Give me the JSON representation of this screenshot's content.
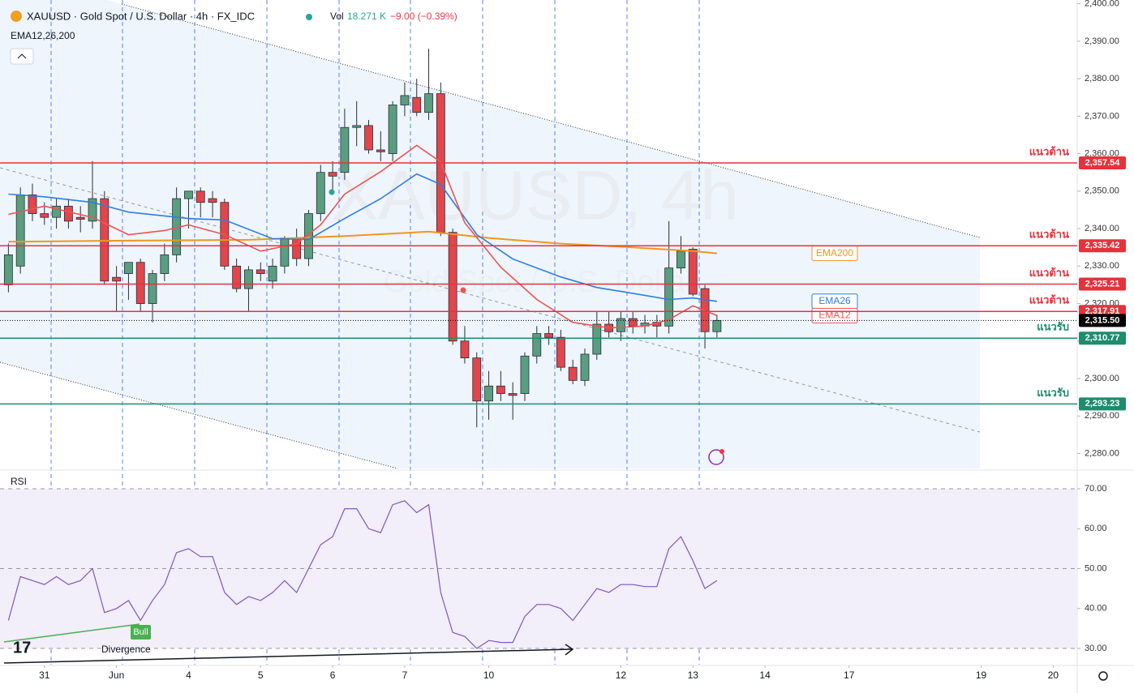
{
  "header": {
    "symbol_line": "XAUUSD · Gold Spot / U.S. Dollar · 4h · FX_IDC",
    "volume_label": "Vol",
    "volume": "18.271 K",
    "change": "−9.00 (−0.39%)",
    "indicators": "EMA12,26,200"
  },
  "watermark": {
    "symbol": "XAUUSD, 4h",
    "description": "Gold Spot / U.S. Dollar"
  },
  "chart_data": [
    {
      "type": "candlestick",
      "x": [
        0,
        1,
        2,
        3,
        4,
        5,
        6,
        7,
        8,
        9,
        10,
        11,
        12,
        13,
        14,
        15,
        16,
        17,
        18,
        19,
        20,
        21,
        22,
        23,
        24,
        25,
        26,
        27,
        28,
        29,
        30,
        31,
        32,
        33,
        34,
        35,
        36,
        37,
        38,
        39,
        40,
        41,
        42,
        43,
        44,
        45,
        46,
        47,
        48,
        49,
        50,
        51,
        52,
        53,
        54,
        55,
        56,
        57,
        58,
        59
      ],
      "open": [
        2325,
        2330,
        2349,
        2344,
        2343,
        2346,
        2343,
        2342,
        2348,
        2327,
        2328,
        2331,
        2320,
        2328,
        2333,
        2348,
        2350,
        2348,
        2347,
        2330,
        2324,
        2329,
        2326,
        2330,
        2337.5,
        2332,
        2344,
        2355,
        2355,
        2367,
        2367.5,
        2361,
        2360,
        2373,
        2375,
        2371,
        2376,
        2339,
        2310,
        2305.5,
        2294,
        2298,
        2296,
        2296,
        2306,
        2312,
        2311,
        2303,
        2299.5,
        2306.5,
        2314.5,
        2312.5,
        2316,
        2314,
        2315,
        2314,
        2329.5,
        2334.5,
        2324,
        2312.5
      ],
      "high": [
        2336,
        2351,
        2352,
        2347,
        2348,
        2348,
        2346,
        2358,
        2350,
        2330,
        2331,
        2332,
        2329,
        2336,
        2351,
        2350,
        2351,
        2350,
        2348,
        2332,
        2330,
        2331,
        2332,
        2338,
        2340,
        2345,
        2357,
        2358,
        2372,
        2374,
        2369,
        2366,
        2374,
        2379,
        2380,
        2388,
        2379,
        2340,
        2314,
        2307,
        2302,
        2302,
        2299,
        2307,
        2314,
        2314,
        2313,
        2305,
        2308,
        2318,
        2318,
        2318,
        2318,
        2317,
        2317,
        2342,
        2338,
        2335,
        2325,
        2317
      ],
      "low": [
        2323,
        2328,
        2342,
        2341,
        2340,
        2340,
        2339,
        2340,
        2325,
        2318,
        2321,
        2318,
        2315,
        2326,
        2331,
        2340,
        2343,
        2343,
        2329,
        2323,
        2318,
        2326,
        2324,
        2328,
        2330,
        2330,
        2342,
        2349,
        2353,
        2362,
        2360,
        2358,
        2358,
        2370,
        2370,
        2369,
        2338,
        2309,
        2304,
        2287,
        2289,
        2294,
        2289,
        2294,
        2304,
        2309,
        2302,
        2298.5,
        2298,
        2305,
        2311,
        2310,
        2312,
        2312,
        2311,
        2312,
        2328,
        2322,
        2308,
        2311
      ],
      "close": [
        2333,
        2349,
        2344,
        2343,
        2346,
        2342,
        2342.5,
        2348,
        2326,
        2326,
        2331,
        2320,
        2328,
        2333,
        2348,
        2350,
        2347,
        2347,
        2330,
        2324,
        2329,
        2328,
        2330,
        2337.5,
        2332,
        2344,
        2355,
        2354,
        2367,
        2367.5,
        2361,
        2360.5,
        2373,
        2375.5,
        2371,
        2376,
        2339,
        2310,
        2305.5,
        2294,
        2298,
        2296,
        2295.5,
        2306,
        2312,
        2311,
        2303,
        2299.5,
        2306.5,
        2314.5,
        2312.5,
        2316,
        2314,
        2314.8,
        2314,
        2329.5,
        2334,
        2322.5,
        2312.5,
        2315.5
      ],
      "up_color": "#5a9e7f",
      "down_color": "#e0464c",
      "series": [
        {
          "name": "EMA200",
          "color": "#f0961e",
          "x": [
            0,
            10,
            20,
            28,
            35,
            40,
            46,
            52,
            57,
            59
          ],
          "values": [
            2336.5,
            2336.8,
            2337,
            2338,
            2339.2,
            2337.5,
            2336,
            2335,
            2334,
            2333.4
          ]
        },
        {
          "name": "EMA26",
          "color": "#2f7de1",
          "x": [
            0,
            3,
            7,
            10,
            15,
            18,
            22,
            25,
            28,
            31,
            34,
            36,
            39,
            42,
            46,
            49,
            53,
            55,
            57,
            59
          ],
          "values": [
            2349.2,
            2348.5,
            2347,
            2344.4,
            2342.7,
            2342.3,
            2337.3,
            2337.1,
            2342.7,
            2348,
            2354.6,
            2351.8,
            2338.4,
            2331.9,
            2327.1,
            2324.3,
            2322.2,
            2321.1,
            2321.5,
            2320.6
          ]
        },
        {
          "name": "EMA12",
          "color": "#ef5350",
          "x": [
            0,
            3,
            7,
            10,
            13,
            15,
            18,
            21,
            24,
            26,
            28,
            31,
            34,
            36,
            38,
            41,
            44,
            47,
            50,
            53,
            55,
            57,
            59
          ],
          "values": [
            2343.8,
            2346,
            2343,
            2338.4,
            2339.5,
            2341,
            2338.4,
            2334,
            2336,
            2341,
            2349.2,
            2355.2,
            2362.2,
            2357.8,
            2341.6,
            2329.7,
            2321.1,
            2315,
            2313.5,
            2314,
            2315.7,
            2319.4,
            2316.8
          ]
        }
      ],
      "levels": [
        {
          "value": 2357.54,
          "value_label": "2,357.54",
          "label": "แนวต้าน",
          "color": "#e5323b"
        },
        {
          "value": 2335.42,
          "value_label": "2,335.42",
          "label": "แนวต้าน",
          "color": "#e5323b"
        },
        {
          "value": 2325.21,
          "value_label": "2,325.21",
          "label": "แนวต้าน",
          "color": "#e5323b"
        },
        {
          "value": 2317.91,
          "value_label": "2,317.91",
          "label": "แนวต้าน",
          "color": "#e5323b"
        },
        {
          "value": 2315.5,
          "value_label": "2,315.50",
          "color": "#000000",
          "line_style": "dotted"
        },
        {
          "value": 2310.77,
          "value_label": "2,310.77",
          "label": "แนวรับ",
          "color": "#1e8c6e"
        },
        {
          "value": 2293.23,
          "value_label": "2,293.23",
          "label": "แนวรับ",
          "color": "#1e8c6e"
        }
      ],
      "xlim": [
        -0.7,
        89
      ],
      "ylim": [
        2276,
        2401
      ],
      "yticks": [
        {
          "value": 2280,
          "label": "2,280.00"
        },
        {
          "value": 2290,
          "label": "2,290.00"
        },
        {
          "value": 2300,
          "label": "2,300.00"
        },
        {
          "value": 2310,
          "label": "2,310.00"
        },
        {
          "value": 2320,
          "label": "2,320.00"
        },
        {
          "value": 2330,
          "label": "2,330.00"
        },
        {
          "value": 2340,
          "label": "2,340.00"
        },
        {
          "value": 2350,
          "label": "2,350.00"
        },
        {
          "value": 2360,
          "label": "2,360.00"
        },
        {
          "value": 2370,
          "label": "2,370.00"
        },
        {
          "value": 2380,
          "label": "2,380.00"
        },
        {
          "value": 2390,
          "label": "2,390.00"
        },
        {
          "value": 2400,
          "label": "2,400.00"
        }
      ]
    },
    {
      "type": "line",
      "title": "RSI",
      "color": "#7e57c2",
      "x": [
        0,
        1,
        2,
        3,
        4,
        5,
        6,
        7,
        8,
        9,
        10,
        11,
        12,
        13,
        14,
        15,
        16,
        17,
        18,
        19,
        20,
        21,
        22,
        23,
        24,
        25,
        26,
        27,
        28,
        29,
        30,
        31,
        32,
        33,
        34,
        35,
        36,
        37,
        38,
        39,
        40,
        41,
        42,
        43,
        44,
        45,
        46,
        47,
        48,
        49,
        50,
        51,
        52,
        53,
        54,
        55,
        56,
        57,
        58,
        59
      ],
      "values": [
        37,
        48,
        47,
        46,
        48,
        46,
        47,
        50,
        39,
        40,
        42,
        37,
        42,
        46,
        54,
        55,
        53,
        53,
        44,
        41,
        43,
        42,
        44,
        47,
        44,
        50,
        56,
        58,
        65,
        65,
        60,
        59,
        66,
        67,
        64,
        66,
        44,
        34,
        33,
        30,
        32,
        31.5,
        31.5,
        38,
        41,
        41,
        40,
        37,
        41,
        45,
        44,
        46,
        46,
        45.5,
        45.5,
        55,
        58,
        52,
        45,
        47
      ],
      "xlim": [
        -0.7,
        89
      ],
      "ylim": [
        26,
        74
      ],
      "yticks": [
        {
          "value": 30,
          "label": "30.00"
        },
        {
          "value": 40,
          "label": "40.00"
        },
        {
          "value": 50,
          "label": "50.00"
        },
        {
          "value": 60,
          "label": "60.00"
        },
        {
          "value": 70,
          "label": "70.00"
        }
      ],
      "hlines": [
        30,
        50,
        70
      ],
      "xticks": [
        {
          "value": 3,
          "label": "31"
        },
        {
          "value": 9,
          "label": "Jun"
        },
        {
          "value": 15,
          "label": "4"
        },
        {
          "value": 21,
          "label": "5"
        },
        {
          "value": 27,
          "label": "6"
        },
        {
          "value": 33,
          "label": "7"
        },
        {
          "value": 40,
          "label": "10"
        },
        {
          "value": 51,
          "label": "12"
        },
        {
          "value": 57,
          "label": "13"
        },
        {
          "value": 63,
          "label": "14"
        },
        {
          "value": 70,
          "label": "17"
        },
        {
          "value": 81,
          "label": "19"
        },
        {
          "value": 87,
          "label": "20"
        }
      ],
      "annotations": {
        "bull": "Bull",
        "divergence": "Divergence"
      }
    }
  ]
}
